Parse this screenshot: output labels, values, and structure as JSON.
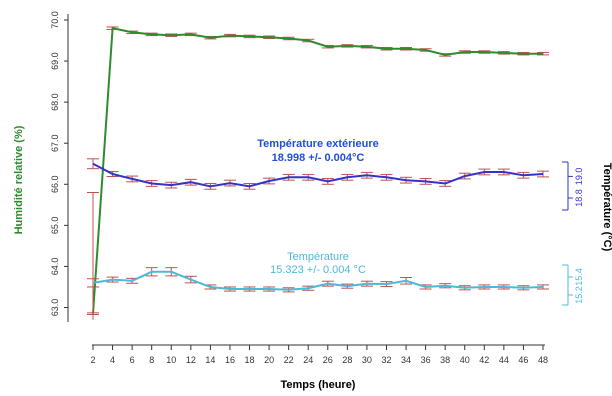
{
  "chart_data": {
    "type": "line",
    "xlabel": "Temps (heure)",
    "x_ticks": [
      2,
      4,
      6,
      8,
      10,
      12,
      14,
      16,
      18,
      20,
      22,
      24,
      26,
      28,
      30,
      32,
      34,
      36,
      38,
      40,
      42,
      44,
      46,
      48
    ],
    "left_axis": {
      "label": "Humidité relative (%)",
      "ylim": [
        62.6,
        70.3
      ],
      "ticks": [
        "63.0",
        "64.0",
        "65.0",
        "66.0",
        "67.0",
        "68.0",
        "69.0",
        "70.0"
      ]
    },
    "right_axis": {
      "label": "Température (°C)",
      "exterior_ticks": [
        "18.8",
        "19.0"
      ],
      "interior_ticks": [
        "15.2",
        "15.4"
      ]
    },
    "annotations": {
      "exterior_title": "Température extérieure",
      "exterior_value": "18.998 +/- 0.004°C",
      "interior_title": "Température",
      "interior_value": "15.323 +/- 0.004 °C"
    },
    "colors": {
      "humidity": "#2e8b2e",
      "exterior": "#3333cc",
      "exterior_text": "#1f4fd8",
      "interior": "#4db8d8",
      "error_bars": "#c0504d"
    },
    "series": [
      {
        "axis": "left",
        "x": [
          2,
          4,
          6,
          8,
          10,
          12,
          14,
          16,
          18,
          20,
          22,
          24,
          26,
          28,
          30,
          32,
          34,
          36,
          38,
          40,
          42,
          44,
          46,
          48
        ],
        "values": [
          62.85,
          69.8,
          69.7,
          69.65,
          69.63,
          69.65,
          69.57,
          69.62,
          69.6,
          69.58,
          69.55,
          69.5,
          69.35,
          69.37,
          69.35,
          69.3,
          69.3,
          69.27,
          69.15,
          69.22,
          69.22,
          69.2,
          69.18,
          69.18
        ],
        "error": [
          0.02,
          0.03,
          0.03,
          0.03,
          0.03,
          0.03,
          0.03,
          0.03,
          0.03,
          0.03,
          0.03,
          0.03,
          0.03,
          0.03,
          0.03,
          0.03,
          0.03,
          0.03,
          0.03,
          0.03,
          0.03,
          0.03,
          0.03,
          0.03
        ]
      },
      {
        "axis": "left",
        "x": [
          2,
          4,
          6,
          8,
          10,
          12,
          14,
          16,
          18,
          20,
          22,
          24,
          26,
          28,
          30,
          32,
          34,
          36,
          38,
          40,
          42,
          44,
          46,
          48
        ],
        "values": [
          66.5,
          66.25,
          66.13,
          66.02,
          65.98,
          66.05,
          65.95,
          66.03,
          65.95,
          66.08,
          66.17,
          66.17,
          66.07,
          66.17,
          66.22,
          66.17,
          66.1,
          66.07,
          66.02,
          66.2,
          66.3,
          66.3,
          66.22,
          66.25
        ],
        "error": [
          0.12,
          0.06,
          0.07,
          0.07,
          0.07,
          0.07,
          0.07,
          0.07,
          0.07,
          0.07,
          0.07,
          0.07,
          0.07,
          0.07,
          0.07,
          0.07,
          0.07,
          0.07,
          0.07,
          0.07,
          0.07,
          0.07,
          0.07,
          0.07
        ]
      },
      {
        "axis": "left",
        "x": [
          2,
          4,
          6,
          8,
          10,
          12,
          14,
          16,
          18,
          20,
          22,
          24,
          26,
          28,
          30,
          32,
          34,
          36,
          38,
          40,
          42,
          44,
          46,
          48
        ],
        "values": [
          63.6,
          63.68,
          63.65,
          63.87,
          63.87,
          63.68,
          63.5,
          63.45,
          63.45,
          63.45,
          63.43,
          63.47,
          63.58,
          63.52,
          63.58,
          63.57,
          63.65,
          63.5,
          63.53,
          63.48,
          63.5,
          63.5,
          63.48,
          63.5
        ],
        "error": [
          0.1,
          0.06,
          0.06,
          0.1,
          0.1,
          0.08,
          0.05,
          0.05,
          0.05,
          0.05,
          0.05,
          0.05,
          0.06,
          0.05,
          0.06,
          0.06,
          0.08,
          0.05,
          0.05,
          0.05,
          0.05,
          0.05,
          0.05,
          0.05
        ]
      }
    ]
  }
}
